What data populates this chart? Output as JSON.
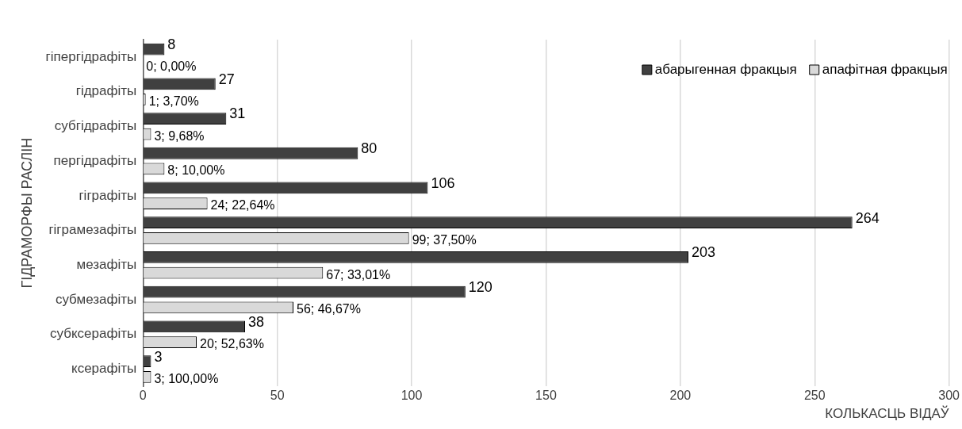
{
  "chart_data": {
    "type": "bar",
    "orientation": "horizontal",
    "xlabel": "КОЛЬКАСЦЬ ВІДАЎ",
    "ylabel": "ГІДРАМОРФЫ РАСЛІН",
    "categories": [
      "гіпергідрафіты",
      "гідрафіты",
      "субгідрафіты",
      "пергідрафіты",
      "гіграфіты",
      "гіграмезафіты",
      "мезафіты",
      "субмезафіты",
      "субксерафіты",
      "ксерафіты"
    ],
    "series": [
      {
        "name": "абарыгенная фракцыя",
        "color": "#404040",
        "values": [
          8,
          27,
          31,
          80,
          106,
          264,
          203,
          120,
          38,
          3
        ],
        "value_labels": [
          "8",
          "27",
          "31",
          "80",
          "106",
          "264",
          "203",
          "120",
          "38",
          "3"
        ]
      },
      {
        "name": "апафітная фракцыя",
        "color": "#d9d9d9",
        "values": [
          0,
          1,
          3,
          8,
          24,
          99,
          67,
          56,
          20,
          3
        ],
        "value_labels": [
          "0; 0,00%",
          "1; 3,70%",
          "3; 9,68%",
          "8; 10,00%",
          "24; 22,64%",
          "99; 37,50%",
          "67; 33,01%",
          "56; 46,67%",
          "20; 52,63%",
          "3; 100,00%"
        ]
      }
    ],
    "xlim": [
      0,
      300
    ],
    "xticks": [
      0,
      50,
      100,
      150,
      200,
      250,
      300
    ],
    "grid": "x",
    "legend": "top right"
  }
}
